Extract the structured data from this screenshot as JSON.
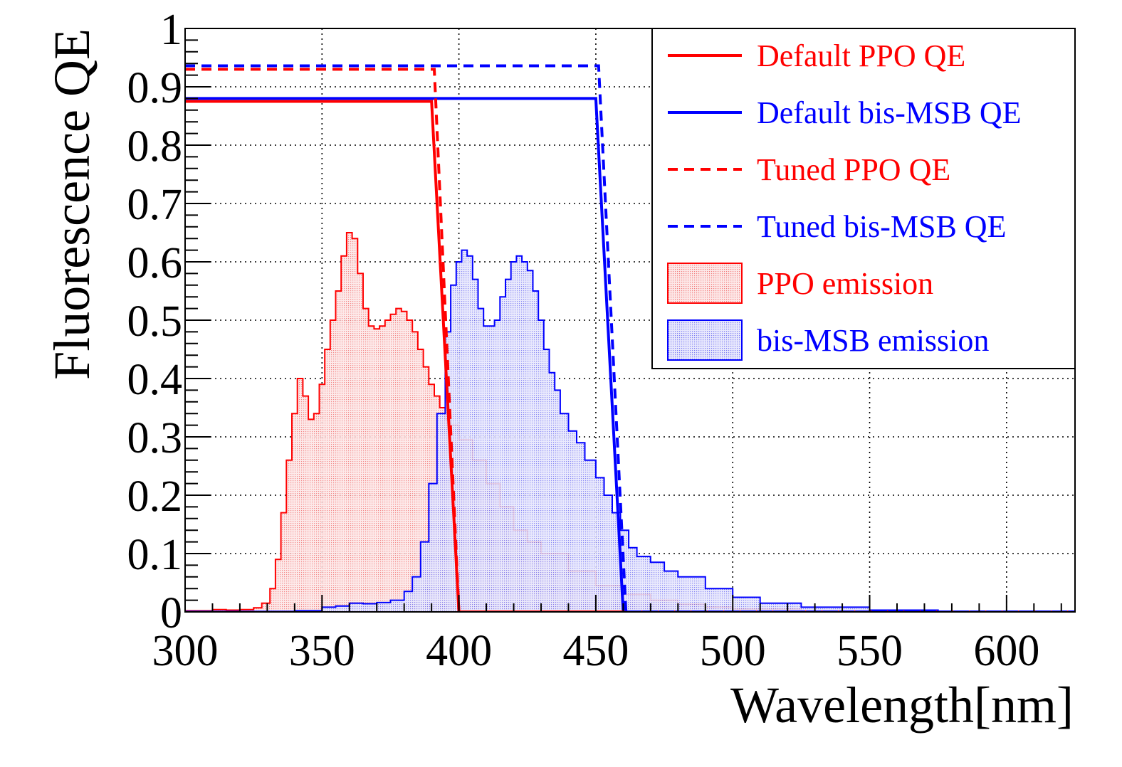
{
  "chart_data": {
    "type": "line",
    "title": "",
    "xlabel": "Wavelength[nm]",
    "ylabel": "Fluorescence QE",
    "xlim": [
      300,
      625
    ],
    "ylim": [
      0,
      1
    ],
    "x_ticks": [
      300,
      350,
      400,
      450,
      500,
      550,
      600
    ],
    "x_tick_labels": [
      "300",
      "350",
      "400",
      "450",
      "500",
      "550",
      "600"
    ],
    "y_ticks": [
      0,
      0.1,
      0.2,
      0.3,
      0.4,
      0.5,
      0.6,
      0.7,
      0.8,
      0.9,
      1
    ],
    "y_tick_labels": [
      "0",
      "0.1",
      "0.2",
      "0.3",
      "0.4",
      "0.5",
      "0.6",
      "0.7",
      "0.8",
      "0.9",
      "1"
    ],
    "grid": true,
    "legend_position": "top-right",
    "colors": {
      "red": "#ff0000",
      "blue": "#0000ff",
      "red_fill": "#fbe1e1",
      "blue_fill": "#e1e1fb"
    },
    "series": [
      {
        "name": "Default PPO QE",
        "style": "solid-line",
        "color": "#ff0000",
        "x": [
          300,
          390,
          400,
          625
        ],
        "y": [
          0.875,
          0.875,
          0,
          0
        ]
      },
      {
        "name": "Default bis-MSB QE",
        "style": "solid-line",
        "color": "#0000ff",
        "x": [
          300,
          450,
          460,
          625
        ],
        "y": [
          0.88,
          0.88,
          0,
          0
        ]
      },
      {
        "name": "Tuned PPO QE",
        "style": "dashed-line",
        "color": "#ff0000",
        "x": [
          300,
          391,
          400,
          625
        ],
        "y": [
          0.93,
          0.93,
          0,
          0
        ]
      },
      {
        "name": "Tuned bis-MSB QE",
        "style": "dashed-line",
        "color": "#0000ff",
        "x": [
          300,
          451,
          461,
          625
        ],
        "y": [
          0.936,
          0.936,
          0,
          0
        ]
      },
      {
        "name": "PPO emission",
        "style": "filled-histogram",
        "color": "#ff0000",
        "x": [
          300,
          310,
          315,
          320,
          325,
          328,
          331,
          333,
          335,
          337,
          339,
          341,
          343,
          345,
          347,
          349,
          351,
          353,
          355,
          357,
          359,
          361,
          363,
          365,
          367,
          369,
          371,
          373,
          375,
          377,
          379,
          381,
          383,
          385,
          387,
          389,
          391,
          393,
          395,
          397,
          400,
          405,
          410,
          415,
          420,
          425,
          430,
          440,
          450,
          460,
          470,
          480,
          490,
          500,
          525,
          550,
          575,
          600,
          625
        ],
        "y": [
          0.002,
          0.004,
          0.003,
          0.004,
          0.007,
          0.015,
          0.04,
          0.09,
          0.17,
          0.26,
          0.34,
          0.4,
          0.37,
          0.33,
          0.34,
          0.39,
          0.45,
          0.5,
          0.55,
          0.61,
          0.65,
          0.64,
          0.58,
          0.52,
          0.49,
          0.485,
          0.49,
          0.5,
          0.51,
          0.52,
          0.515,
          0.5,
          0.48,
          0.45,
          0.42,
          0.39,
          0.37,
          0.35,
          0.33,
          0.32,
          0.295,
          0.26,
          0.22,
          0.18,
          0.14,
          0.12,
          0.1,
          0.07,
          0.045,
          0.03,
          0.02,
          0.013,
          0.008,
          0.005,
          0.002,
          0.001,
          0.0005,
          0.0003,
          0.0002
        ]
      },
      {
        "name": "bis-MSB emission",
        "style": "filled-histogram",
        "color": "#0000ff",
        "x": [
          300,
          340,
          350,
          355,
          360,
          365,
          370,
          375,
          380,
          383,
          386,
          389,
          392,
          395,
          397,
          399,
          401,
          403,
          405,
          407,
          409,
          411,
          413,
          415,
          417,
          419,
          421,
          423,
          425,
          427,
          429,
          431,
          433,
          435,
          437,
          440,
          443,
          446,
          450,
          453,
          456,
          459,
          462,
          465,
          470,
          475,
          480,
          490,
          500,
          510,
          525,
          550,
          575,
          600,
          625
        ],
        "y": [
          0.001,
          0.002,
          0.008,
          0.01,
          0.015,
          0.014,
          0.016,
          0.02,
          0.035,
          0.06,
          0.12,
          0.22,
          0.34,
          0.48,
          0.56,
          0.6,
          0.62,
          0.61,
          0.57,
          0.52,
          0.49,
          0.49,
          0.5,
          0.54,
          0.57,
          0.6,
          0.61,
          0.6,
          0.585,
          0.55,
          0.5,
          0.45,
          0.41,
          0.38,
          0.34,
          0.31,
          0.29,
          0.26,
          0.23,
          0.2,
          0.17,
          0.14,
          0.11,
          0.095,
          0.085,
          0.07,
          0.06,
          0.04,
          0.025,
          0.015,
          0.008,
          0.003,
          0.001,
          0.0005,
          0.0003
        ]
      }
    ]
  }
}
